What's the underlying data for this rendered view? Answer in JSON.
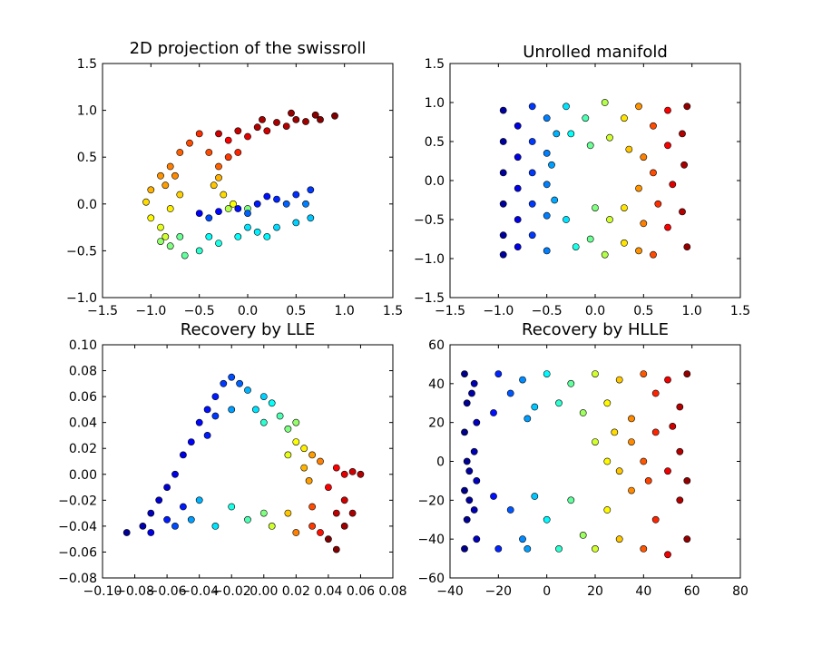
{
  "chart_data": [
    {
      "type": "scatter",
      "title": "2D projection of the swissroll",
      "xlim": [
        -1.5,
        1.5
      ],
      "ylim": [
        -1.0,
        1.5
      ],
      "xticks": [
        "−1.5",
        "−1.0",
        "−0.5",
        "0.0",
        "0.5",
        "1.0",
        "1.5"
      ],
      "xtick_values": [
        -1.5,
        -1.0,
        -0.5,
        0.0,
        0.5,
        1.0,
        1.5
      ],
      "yticks": [
        "−1.0",
        "−0.5",
        "0.0",
        "0.5",
        "1.0",
        "1.5"
      ],
      "ytick_values": [
        -1.0,
        -0.5,
        0.0,
        0.5,
        1.0,
        1.5
      ],
      "colormap": "jet",
      "points": [
        [
          -0.3,
          0.75,
          0.92
        ],
        [
          -0.1,
          0.78,
          0.93
        ],
        [
          0.1,
          0.82,
          0.95
        ],
        [
          0.3,
          0.87,
          0.96
        ],
        [
          0.5,
          0.9,
          0.97
        ],
        [
          0.7,
          0.95,
          0.99
        ],
        [
          0.9,
          0.94,
          1.0
        ],
        [
          0.0,
          0.72,
          0.9
        ],
        [
          0.2,
          0.78,
          0.92
        ],
        [
          0.4,
          0.83,
          0.95
        ],
        [
          0.6,
          0.88,
          0.97
        ],
        [
          -0.2,
          0.68,
          0.88
        ],
        [
          0.15,
          0.9,
          0.96
        ],
        [
          0.45,
          0.97,
          0.98
        ],
        [
          0.75,
          0.9,
          0.99
        ],
        [
          -0.6,
          0.65,
          0.8
        ],
        [
          -0.7,
          0.55,
          0.78
        ],
        [
          -0.8,
          0.4,
          0.75
        ],
        [
          -0.9,
          0.3,
          0.73
        ],
        [
          -1.0,
          0.15,
          0.7
        ],
        [
          -0.5,
          0.75,
          0.83
        ],
        [
          -0.4,
          0.55,
          0.8
        ],
        [
          -0.2,
          0.5,
          0.82
        ],
        [
          -0.3,
          0.4,
          0.78
        ],
        [
          -0.1,
          0.55,
          0.84
        ],
        [
          -0.85,
          0.2,
          0.72
        ],
        [
          -0.75,
          0.3,
          0.74
        ],
        [
          -1.05,
          0.02,
          0.66
        ],
        [
          -1.0,
          -0.15,
          0.63
        ],
        [
          -0.9,
          -0.25,
          0.6
        ],
        [
          -0.8,
          -0.05,
          0.64
        ],
        [
          -0.7,
          0.1,
          0.67
        ],
        [
          -0.35,
          0.2,
          0.68
        ],
        [
          -0.25,
          0.1,
          0.66
        ],
        [
          -0.15,
          0.0,
          0.62
        ],
        [
          -0.3,
          0.28,
          0.7
        ],
        [
          -0.85,
          -0.35,
          0.58
        ],
        [
          -0.9,
          -0.4,
          0.52
        ],
        [
          -0.8,
          -0.45,
          0.5
        ],
        [
          -0.65,
          -0.55,
          0.47
        ],
        [
          -0.7,
          -0.35,
          0.48
        ],
        [
          -0.2,
          -0.05,
          0.55
        ],
        [
          0.0,
          -0.05,
          0.5
        ],
        [
          -0.5,
          -0.5,
          0.42
        ],
        [
          -0.3,
          -0.42,
          0.4
        ],
        [
          -0.1,
          -0.35,
          0.38
        ],
        [
          0.1,
          -0.3,
          0.36
        ],
        [
          0.3,
          -0.25,
          0.34
        ],
        [
          0.5,
          -0.2,
          0.33
        ],
        [
          0.65,
          -0.15,
          0.32
        ],
        [
          -0.4,
          -0.35,
          0.38
        ],
        [
          0.0,
          -0.25,
          0.35
        ],
        [
          0.2,
          -0.35,
          0.37
        ],
        [
          -0.5,
          -0.1,
          0.12
        ],
        [
          -0.3,
          -0.08,
          0.13
        ],
        [
          -0.1,
          -0.05,
          0.14
        ],
        [
          0.1,
          0.0,
          0.15
        ],
        [
          0.3,
          0.05,
          0.16
        ],
        [
          0.5,
          0.1,
          0.17
        ],
        [
          0.65,
          0.15,
          0.18
        ],
        [
          -0.4,
          -0.15,
          0.2
        ],
        [
          0.0,
          -0.1,
          0.22
        ],
        [
          0.4,
          0.0,
          0.22
        ],
        [
          0.6,
          0.0,
          0.25
        ],
        [
          0.2,
          0.08,
          0.14
        ]
      ]
    },
    {
      "type": "scatter",
      "title": "Unrolled manifold",
      "xlim": [
        -1.5,
        1.5
      ],
      "ylim": [
        -1.5,
        1.5
      ],
      "xticks": [
        "−1.5",
        "−1.0",
        "−0.5",
        "0.0",
        "0.5",
        "1.0",
        "1.5"
      ],
      "xtick_values": [
        -1.5,
        -1.0,
        -0.5,
        0.0,
        0.5,
        1.0,
        1.5
      ],
      "yticks": [
        "−1.5",
        "−1.0",
        "−0.5",
        "0.0",
        "0.5",
        "1.0",
        "1.5"
      ],
      "ytick_values": [
        -1.5,
        -1.0,
        -0.5,
        0.0,
        0.5,
        1.0,
        1.5
      ],
      "colormap": "jet",
      "points": [
        [
          -0.95,
          0.9,
          0.03
        ],
        [
          -0.95,
          0.5,
          0.03
        ],
        [
          -0.95,
          0.1,
          0.03
        ],
        [
          -0.95,
          -0.3,
          0.03
        ],
        [
          -0.95,
          -0.7,
          0.03
        ],
        [
          -0.95,
          -0.95,
          0.03
        ],
        [
          -0.8,
          0.7,
          0.1
        ],
        [
          -0.8,
          0.3,
          0.1
        ],
        [
          -0.8,
          -0.1,
          0.1
        ],
        [
          -0.8,
          -0.5,
          0.1
        ],
        [
          -0.8,
          -0.85,
          0.1
        ],
        [
          -0.65,
          0.95,
          0.18
        ],
        [
          -0.65,
          0.5,
          0.18
        ],
        [
          -0.65,
          0.1,
          0.18
        ],
        [
          -0.65,
          -0.3,
          0.18
        ],
        [
          -0.65,
          -0.7,
          0.18
        ],
        [
          -0.5,
          0.8,
          0.25
        ],
        [
          -0.5,
          0.35,
          0.25
        ],
        [
          -0.5,
          -0.05,
          0.25
        ],
        [
          -0.5,
          -0.45,
          0.25
        ],
        [
          -0.5,
          -0.9,
          0.25
        ],
        [
          -0.4,
          0.6,
          0.3
        ],
        [
          -0.45,
          0.2,
          0.28
        ],
        [
          -0.42,
          -0.25,
          0.29
        ],
        [
          -0.3,
          0.95,
          0.35
        ],
        [
          -0.25,
          0.6,
          0.38
        ],
        [
          -0.3,
          -0.5,
          0.35
        ],
        [
          -0.2,
          -0.85,
          0.4
        ],
        [
          -0.1,
          0.8,
          0.45
        ],
        [
          -0.05,
          0.45,
          0.48
        ],
        [
          0.0,
          -0.35,
          0.5
        ],
        [
          -0.05,
          -0.75,
          0.48
        ],
        [
          0.1,
          1.0,
          0.55
        ],
        [
          0.15,
          0.55,
          0.58
        ],
        [
          0.15,
          -0.5,
          0.58
        ],
        [
          0.1,
          -0.95,
          0.55
        ],
        [
          0.3,
          0.8,
          0.65
        ],
        [
          0.35,
          0.4,
          0.68
        ],
        [
          0.3,
          -0.35,
          0.65
        ],
        [
          0.3,
          -0.8,
          0.65
        ],
        [
          0.45,
          0.95,
          0.73
        ],
        [
          0.5,
          0.3,
          0.75
        ],
        [
          0.45,
          -0.1,
          0.73
        ],
        [
          0.5,
          -0.55,
          0.75
        ],
        [
          0.45,
          -0.9,
          0.73
        ],
        [
          0.6,
          0.7,
          0.8
        ],
        [
          0.6,
          0.1,
          0.8
        ],
        [
          0.65,
          -0.3,
          0.83
        ],
        [
          0.6,
          -0.95,
          0.8
        ],
        [
          0.75,
          0.9,
          0.88
        ],
        [
          0.75,
          0.45,
          0.88
        ],
        [
          0.8,
          -0.05,
          0.9
        ],
        [
          0.75,
          -0.6,
          0.88
        ],
        [
          0.9,
          0.6,
          0.95
        ],
        [
          0.92,
          0.2,
          0.96
        ],
        [
          0.9,
          -0.4,
          0.95
        ],
        [
          0.95,
          -0.85,
          0.98
        ],
        [
          0.95,
          0.95,
          0.98
        ]
      ]
    },
    {
      "type": "scatter",
      "title": "Recovery by LLE",
      "xlim": [
        -0.1,
        0.08
      ],
      "ylim": [
        -0.08,
        0.1
      ],
      "xticks": [
        "−0.10",
        "−0.08",
        "−0.06",
        "−0.04",
        "−0.02",
        "0.00",
        "0.02",
        "0.04",
        "0.06",
        "0.08"
      ],
      "xtick_values": [
        -0.1,
        -0.08,
        -0.06,
        -0.04,
        -0.02,
        0.0,
        0.02,
        0.04,
        0.06,
        0.08
      ],
      "yticks": [
        "−0.08",
        "−0.06",
        "−0.04",
        "−0.02",
        "0.00",
        "0.02",
        "0.04",
        "0.06",
        "0.08",
        "0.10"
      ],
      "ytick_values": [
        -0.08,
        -0.06,
        -0.04,
        -0.02,
        0.0,
        0.02,
        0.04,
        0.06,
        0.08,
        0.1
      ],
      "colormap": "jet",
      "points": [
        [
          -0.085,
          -0.045,
          0.02
        ],
        [
          -0.075,
          -0.04,
          0.05
        ],
        [
          -0.07,
          -0.03,
          0.06
        ],
        [
          -0.065,
          -0.02,
          0.08
        ],
        [
          -0.06,
          -0.01,
          0.08
        ],
        [
          -0.055,
          0.0,
          0.1
        ],
        [
          -0.05,
          0.015,
          0.1
        ],
        [
          -0.045,
          0.025,
          0.12
        ],
        [
          -0.04,
          0.04,
          0.13
        ],
        [
          -0.035,
          0.05,
          0.14
        ],
        [
          -0.03,
          0.06,
          0.15
        ],
        [
          -0.025,
          0.07,
          0.18
        ],
        [
          -0.02,
          0.075,
          0.2
        ],
        [
          -0.015,
          0.07,
          0.22
        ],
        [
          -0.035,
          0.03,
          0.15
        ],
        [
          -0.03,
          0.045,
          0.18
        ],
        [
          -0.06,
          -0.035,
          0.15
        ],
        [
          -0.05,
          -0.025,
          0.15
        ],
        [
          -0.01,
          0.065,
          0.3
        ],
        [
          0.0,
          0.06,
          0.33
        ],
        [
          -0.005,
          0.05,
          0.35
        ],
        [
          0.005,
          0.055,
          0.38
        ],
        [
          -0.02,
          0.05,
          0.28
        ],
        [
          0.01,
          0.045,
          0.45
        ],
        [
          0.015,
          0.035,
          0.5
        ],
        [
          0.02,
          0.04,
          0.52
        ],
        [
          0.0,
          0.04,
          0.42
        ],
        [
          0.02,
          0.025,
          0.62
        ],
        [
          0.025,
          0.02,
          0.64
        ],
        [
          0.015,
          0.015,
          0.6
        ],
        [
          0.03,
          0.015,
          0.72
        ],
        [
          0.035,
          0.01,
          0.75
        ],
        [
          0.025,
          0.005,
          0.7
        ],
        [
          0.028,
          -0.005,
          0.72
        ],
        [
          0.045,
          0.005,
          0.88
        ],
        [
          0.05,
          0.0,
          0.9
        ],
        [
          0.055,
          0.002,
          0.92
        ],
        [
          0.06,
          0.0,
          0.95
        ],
        [
          0.04,
          -0.01,
          0.88
        ],
        [
          0.05,
          -0.02,
          0.92
        ],
        [
          0.045,
          -0.03,
          0.94
        ],
        [
          0.05,
          -0.04,
          0.97
        ],
        [
          0.04,
          -0.05,
          1.0
        ],
        [
          0.045,
          -0.058,
          1.0
        ],
        [
          0.055,
          -0.03,
          0.96
        ],
        [
          -0.07,
          -0.045,
          0.1
        ],
        [
          -0.055,
          -0.04,
          0.2
        ],
        [
          -0.045,
          -0.035,
          0.28
        ],
        [
          -0.04,
          -0.02,
          0.3
        ],
        [
          -0.03,
          -0.04,
          0.35
        ],
        [
          -0.02,
          -0.025,
          0.4
        ],
        [
          -0.01,
          -0.035,
          0.45
        ],
        [
          0.0,
          -0.03,
          0.5
        ],
        [
          0.005,
          -0.04,
          0.58
        ],
        [
          0.015,
          -0.03,
          0.68
        ],
        [
          0.02,
          -0.045,
          0.75
        ],
        [
          0.03,
          -0.04,
          0.82
        ],
        [
          0.03,
          -0.025,
          0.8
        ],
        [
          0.035,
          -0.045,
          0.86
        ]
      ]
    },
    {
      "type": "scatter",
      "title": "Recovery by HLLE",
      "xlim": [
        -40,
        80
      ],
      "ylim": [
        -60,
        60
      ],
      "xticks": [
        "−40",
        "−20",
        "0",
        "20",
        "40",
        "60",
        "80"
      ],
      "xtick_values": [
        -40,
        -20,
        0,
        20,
        40,
        60,
        80
      ],
      "yticks": [
        "−60",
        "−40",
        "−20",
        "0",
        "20",
        "40",
        "60"
      ],
      "ytick_values": [
        -60,
        -40,
        -20,
        0,
        20,
        40,
        60
      ],
      "colormap": "jet",
      "points": [
        [
          -34,
          45,
          0.01
        ],
        [
          -33,
          30,
          0.02
        ],
        [
          -34,
          15,
          0.01
        ],
        [
          -33,
          0,
          0.02
        ],
        [
          -34,
          -15,
          0.01
        ],
        [
          -33,
          -30,
          0.02
        ],
        [
          -34,
          -45,
          0.01
        ],
        [
          -30,
          40,
          0.05
        ],
        [
          -29,
          20,
          0.06
        ],
        [
          -30,
          5,
          0.05
        ],
        [
          -29,
          -10,
          0.06
        ],
        [
          -30,
          -25,
          0.05
        ],
        [
          -29,
          -40,
          0.06
        ],
        [
          -32,
          -5,
          0.03
        ],
        [
          -31,
          35,
          0.04
        ],
        [
          -32,
          -20,
          0.03
        ],
        [
          -20,
          45,
          0.16
        ],
        [
          -15,
          35,
          0.21
        ],
        [
          -10,
          42,
          0.26
        ],
        [
          -5,
          28,
          0.32
        ],
        [
          0,
          45,
          0.37
        ],
        [
          5,
          30,
          0.42
        ],
        [
          10,
          40,
          0.47
        ],
        [
          15,
          25,
          0.53
        ],
        [
          20,
          45,
          0.58
        ],
        [
          25,
          30,
          0.63
        ],
        [
          30,
          42,
          0.68
        ],
        [
          35,
          22,
          0.74
        ],
        [
          40,
          45,
          0.79
        ],
        [
          45,
          35,
          0.84
        ],
        [
          50,
          42,
          0.89
        ],
        [
          55,
          28,
          0.95
        ],
        [
          58,
          45,
          0.98
        ],
        [
          -22,
          25,
          0.14
        ],
        [
          -8,
          22,
          0.28
        ],
        [
          -20,
          -45,
          0.16
        ],
        [
          -15,
          -25,
          0.21
        ],
        [
          -10,
          -40,
          0.26
        ],
        [
          -5,
          -18,
          0.32
        ],
        [
          0,
          -30,
          0.37
        ],
        [
          5,
          -45,
          0.42
        ],
        [
          10,
          -20,
          0.47
        ],
        [
          15,
          -38,
          0.53
        ],
        [
          20,
          -45,
          0.58
        ],
        [
          25,
          -25,
          0.63
        ],
        [
          30,
          -40,
          0.68
        ],
        [
          35,
          -15,
          0.74
        ],
        [
          40,
          -45,
          0.79
        ],
        [
          45,
          -30,
          0.84
        ],
        [
          50,
          -48,
          0.89
        ],
        [
          55,
          -20,
          0.95
        ],
        [
          58,
          -40,
          0.98
        ],
        [
          -22,
          -18,
          0.14
        ],
        [
          -8,
          -45,
          0.28
        ],
        [
          20,
          10,
          0.58
        ],
        [
          25,
          0,
          0.63
        ],
        [
          30,
          -5,
          0.68
        ],
        [
          35,
          10,
          0.74
        ],
        [
          40,
          0,
          0.79
        ],
        [
          45,
          15,
          0.84
        ],
        [
          50,
          -5,
          0.89
        ],
        [
          55,
          5,
          0.95
        ],
        [
          58,
          -10,
          0.98
        ],
        [
          28,
          15,
          0.66
        ],
        [
          42,
          -10,
          0.81
        ],
        [
          52,
          18,
          0.92
        ]
      ]
    }
  ]
}
